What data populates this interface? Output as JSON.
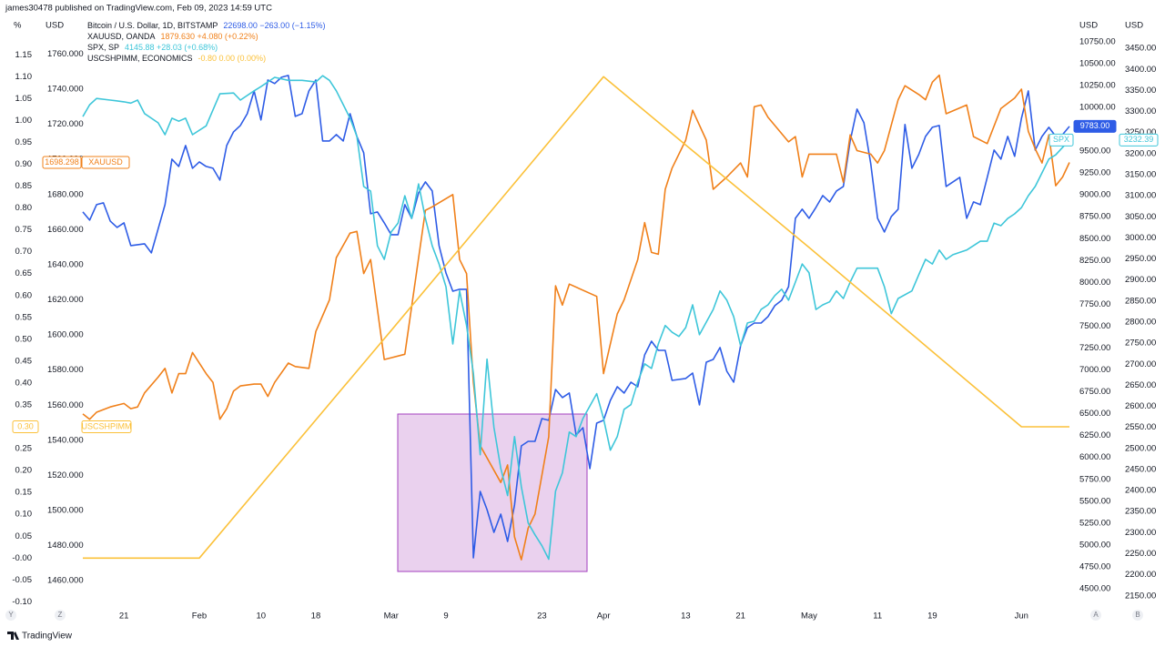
{
  "ui": {
    "header": "james30478 published on TradingView.com, Feb 09, 2023 14:59 UTC",
    "logo": "TradingView",
    "buttons": [
      "Y",
      "Z",
      "A",
      "B"
    ]
  },
  "chart_data": {
    "type": "line",
    "grid": false,
    "xlim": [
      14.6,
      159.4
    ],
    "xticks": [
      21,
      {
        "value": 32,
        "label": "Feb"
      },
      {
        "value": 41,
        "label": "10"
      },
      {
        "value": 49,
        "label": "18"
      },
      {
        "value": 60,
        "label": "Mar"
      },
      {
        "value": 68,
        "label": "9"
      },
      {
        "value": 82,
        "label": "23"
      },
      {
        "value": 91,
        "label": "Apr"
      },
      {
        "value": 103,
        "label": "13"
      },
      {
        "value": 111,
        "label": "21"
      },
      {
        "value": 121,
        "label": "May"
      },
      {
        "value": 131,
        "label": "11"
      },
      {
        "value": 139,
        "label": "19"
      },
      {
        "value": 152,
        "label": "Jun"
      }
    ],
    "y_label": "%",
    "ylim": [
      -0.12,
      1.24
    ],
    "yticks": [
      {
        "value": -0.1,
        "label": "-0.10"
      },
      -0.05,
      {
        "value": 0,
        "label": "-0.00"
      },
      0.05,
      {
        "value": 0.1,
        "label": "0.10"
      },
      0.15,
      {
        "value": 0.2,
        "label": "0.20"
      },
      0.25,
      {
        "value": 0.3,
        "label": "0.30"
      },
      0.35,
      {
        "value": 0.4,
        "label": "0.40"
      },
      0.45,
      {
        "value": 0.5,
        "label": "0.50"
      },
      0.55,
      {
        "value": 0.6,
        "label": "0.60"
      },
      0.65,
      {
        "value": 0.7,
        "label": "0.70"
      },
      0.75,
      {
        "value": 0.8,
        "label": "0.80"
      },
      0.85,
      {
        "value": 0.9,
        "label": "0.90"
      },
      0.95,
      {
        "value": 1,
        "label": "1.00"
      },
      1.05,
      {
        "value": 1.1,
        "label": "1.10"
      },
      1.15
    ],
    "y3_label": "USD",
    "y3lim": [
      1443,
      1782
    ],
    "y3ticks": [
      {
        "value": 1460,
        "label": "1460.000"
      },
      {
        "value": 1480,
        "label": "1480.000"
      },
      {
        "value": 1500,
        "label": "1500.000"
      },
      {
        "value": 1520,
        "label": "1520.000"
      },
      {
        "value": 1540,
        "label": "1540.000"
      },
      {
        "value": 1560,
        "label": "1560.000"
      },
      {
        "value": 1580,
        "label": "1580.000"
      },
      {
        "value": 1600,
        "label": "1600.000"
      },
      {
        "value": 1620,
        "label": "1620.000"
      },
      {
        "value": 1640,
        "label": "1640.000"
      },
      {
        "value": 1660,
        "label": "1660.000"
      },
      {
        "value": 1680,
        "label": "1680.000"
      },
      {
        "value": 1700,
        "label": "1700.000"
      },
      {
        "value": 1720,
        "label": "1720.000"
      },
      {
        "value": 1740,
        "label": "1740.000"
      },
      {
        "value": 1760,
        "label": "1760.000"
      }
    ],
    "y2_label": "USD",
    "y2lim": [
      4250,
      11050
    ],
    "y2ticks": [
      {
        "value": 4500,
        "label": "4500.00"
      },
      {
        "value": 4750,
        "label": "4750.00"
      },
      {
        "value": 5000,
        "label": "5000.00"
      },
      {
        "value": 5250,
        "label": "5250.00"
      },
      {
        "value": 5500,
        "label": "5500.00"
      },
      {
        "value": 5750,
        "label": "5750.00"
      },
      {
        "value": 6000,
        "label": "6000.00"
      },
      {
        "value": 6250,
        "label": "6250.00"
      },
      {
        "value": 6500,
        "label": "6500.00"
      },
      {
        "value": 6750,
        "label": "6750.00"
      },
      {
        "value": 7000,
        "label": "7000.00"
      },
      {
        "value": 7250,
        "label": "7250.00"
      },
      {
        "value": 7500,
        "label": "7500.00"
      },
      {
        "value": 7750,
        "label": "7750.00"
      },
      {
        "value": 8000,
        "label": "8000.00"
      },
      {
        "value": 8250,
        "label": "8250.00"
      },
      {
        "value": 8500,
        "label": "8500.00"
      },
      {
        "value": 8750,
        "label": "8750.00"
      },
      {
        "value": 9000,
        "label": "9000.00"
      },
      {
        "value": 9250,
        "label": "9250.00"
      },
      {
        "value": 9500,
        "label": "9500.00"
      },
      {
        "value": 9750,
        "label": "9750.00"
      },
      {
        "value": 10000,
        "label": "10000.00"
      },
      {
        "value": 10250,
        "label": "10250.00"
      },
      {
        "value": 10500,
        "label": "10500.00"
      },
      {
        "value": 10750,
        "label": "10750.00"
      }
    ],
    "y4_label": "USD",
    "y4lim": [
      2115,
      3528
    ],
    "y4ticks": [
      {
        "value": 2150,
        "label": "2150.00"
      },
      {
        "value": 2200,
        "label": "2200.00"
      },
      {
        "value": 2250,
        "label": "2250.00"
      },
      {
        "value": 2300,
        "label": "2300.00"
      },
      {
        "value": 2350,
        "label": "2350.00"
      },
      {
        "value": 2400,
        "label": "2400.00"
      },
      {
        "value": 2450,
        "label": "2450.00"
      },
      {
        "value": 2500,
        "label": "2500.00"
      },
      {
        "value": 2550,
        "label": "2550.00"
      },
      {
        "value": 2600,
        "label": "2600.00"
      },
      {
        "value": 2650,
        "label": "2650.00"
      },
      {
        "value": 2700,
        "label": "2700.00"
      },
      {
        "value": 2750,
        "label": "2750.00"
      },
      {
        "value": 2800,
        "label": "2800.00"
      },
      {
        "value": 2850,
        "label": "2850.00"
      },
      {
        "value": 2900,
        "label": "2900.00"
      },
      {
        "value": 2950,
        "label": "2950.00"
      },
      {
        "value": 3000,
        "label": "3000.00"
      },
      {
        "value": 3050,
        "label": "3050.00"
      },
      {
        "value": 3100,
        "label": "3100.00"
      },
      {
        "value": 3150,
        "label": "3150.00"
      },
      {
        "value": 3200,
        "label": "3200.00"
      },
      {
        "value": 3250,
        "label": "3250.00"
      },
      {
        "value": 3300,
        "label": "3300.00"
      },
      {
        "value": 3350,
        "label": "3350.00"
      },
      {
        "value": 3400,
        "label": "3400.00"
      },
      {
        "value": 3450,
        "label": "3450.00"
      }
    ],
    "series": [
      {
        "name": "Bitcoin / U.S. Dollar, 1D, BITSTAMP",
        "legend_values": "22698.00 −263.00 (−1.15%)",
        "color": "#2e5ce6",
        "axis": "y2",
        "tag_value": 9783,
        "tag_label": "9783.00",
        "x": [
          15,
          16,
          17,
          18,
          19,
          20,
          21,
          22,
          24,
          25,
          27,
          28,
          29,
          30,
          31,
          32,
          33,
          34,
          35,
          36,
          37,
          38,
          39,
          40,
          41,
          42,
          43,
          44,
          45,
          46,
          47,
          48,
          49,
          50,
          51,
          52,
          53,
          54,
          55,
          56,
          57,
          58,
          59,
          60,
          61,
          62,
          63,
          64,
          65,
          66,
          67,
          68,
          69,
          70,
          71,
          72,
          73,
          74,
          75,
          76,
          77,
          78,
          79,
          80,
          81,
          82,
          83,
          84,
          85,
          86,
          87,
          88,
          89,
          90,
          91,
          92,
          93,
          94,
          95,
          96,
          97,
          98,
          99,
          100,
          101,
          103,
          104,
          105,
          106,
          107,
          108,
          109,
          110,
          111,
          112,
          113,
          114,
          115,
          116,
          117,
          118,
          119,
          120,
          121,
          122,
          123,
          124,
          125,
          126,
          127,
          128,
          129,
          130,
          131,
          132,
          133,
          134,
          135,
          136,
          137,
          138,
          139,
          140,
          141,
          142,
          143,
          144,
          145,
          146,
          147,
          148,
          149,
          150,
          151,
          152,
          153,
          154,
          155,
          156,
          157,
          158,
          159
        ],
        "values": [
          8805,
          8712,
          8888,
          8909,
          8701,
          8628,
          8680,
          8420,
          8441,
          8337,
          8888,
          9408,
          9325,
          9564,
          9304,
          9377,
          9325,
          9304,
          9169,
          9564,
          9720,
          9793,
          9928,
          10188,
          9856,
          10313,
          10272,
          10344,
          10365,
          9897,
          9928,
          10188,
          10313,
          9616,
          9616,
          9689,
          9616,
          9928,
          9668,
          9481,
          8784,
          8805,
          8680,
          8545,
          8545,
          8888,
          8732,
          9024,
          9148,
          9044,
          8420,
          8108,
          7900,
          7921,
          7921,
          4853,
          5612,
          5404,
          5144,
          5352,
          5040,
          5456,
          6132,
          6184,
          6184,
          6444,
          6424,
          6777,
          6684,
          6736,
          6257,
          6340,
          5872,
          6392,
          6424,
          6652,
          6808,
          6736,
          6860,
          6808,
          7172,
          7328,
          7224,
          7224,
          6881,
          6902,
          6964,
          6600,
          7089,
          7120,
          7256,
          6985,
          6860,
          7276,
          7484,
          7536,
          7536,
          7609,
          7734,
          7796,
          7952,
          8732,
          8836,
          8732,
          8857,
          8992,
          8920,
          9044,
          9096,
          9616,
          9980,
          9824,
          9356,
          8732,
          8576,
          8753,
          8836,
          9804,
          9304,
          9460,
          9668,
          9772,
          9793,
          9096,
          9148,
          9200,
          8732,
          8920,
          8888,
          9200,
          9512,
          9408,
          9668,
          9440,
          9876,
          10188,
          9512,
          9668,
          9772,
          9668,
          9689,
          9783
        ]
      },
      {
        "name": "XAUUSD, OANDA",
        "legend_values": "1879.630 +4.080 (+0.22%)",
        "color": "#f0801a",
        "axis": "y3",
        "tag_value": 1698.298,
        "tag_name": "XAUUSD",
        "x": [
          15,
          16,
          17,
          19,
          21,
          22,
          23,
          24,
          26,
          27,
          28,
          29,
          30,
          31,
          33,
          34,
          35,
          36,
          37,
          38,
          40,
          41,
          42,
          43,
          45,
          46,
          48,
          49,
          51,
          52,
          54,
          55,
          56,
          57,
          59,
          62,
          65,
          66,
          69,
          70,
          71,
          72,
          73,
          76,
          77,
          78,
          79,
          80,
          81,
          83,
          84,
          85,
          86,
          90,
          91,
          93,
          94,
          96,
          97,
          98,
          99,
          100,
          101,
          103,
          104,
          106,
          107,
          109,
          111,
          112,
          113,
          114,
          115,
          118,
          119,
          120,
          121,
          125,
          126,
          127,
          128,
          130,
          131,
          132,
          134,
          135,
          137,
          138,
          139,
          140,
          141,
          144,
          145,
          147,
          149,
          151,
          152,
          153,
          154,
          155,
          156,
          157,
          158,
          159
        ],
        "values": [
          1555,
          1552,
          1556,
          1559,
          1561,
          1558,
          1559,
          1567,
          1576,
          1581,
          1567,
          1578,
          1578,
          1590,
          1578,
          1573,
          1552,
          1558,
          1568,
          1571,
          1572,
          1572,
          1565,
          1573,
          1584,
          1582,
          1581,
          1602,
          1620,
          1644,
          1658,
          1659,
          1635,
          1643,
          1586,
          1589,
          1671,
          1673,
          1680,
          1643,
          1635,
          1573,
          1537,
          1516,
          1526,
          1485,
          1472,
          1490,
          1498,
          1542,
          1628,
          1617,
          1629,
          1622,
          1578,
          1612,
          1620,
          1643,
          1664,
          1647,
          1646,
          1683,
          1695,
          1711,
          1728,
          1711,
          1683,
          1690,
          1698,
          1690,
          1730,
          1731,
          1724,
          1710,
          1713,
          1690,
          1703,
          1703,
          1687,
          1714,
          1705,
          1703,
          1698,
          1705,
          1734,
          1742,
          1737,
          1734,
          1744,
          1748,
          1726,
          1731,
          1713,
          1709,
          1729,
          1735,
          1740,
          1716,
          1706,
          1698,
          1714,
          1685,
          1690,
          1698.298
        ]
      },
      {
        "name": "SPX, SP",
        "legend_values": "4145.88 +28.03 (+0.68%)",
        "color": "#3ec6d9",
        "axis": "y4",
        "tag_value": 3232.39,
        "tag_name": "SPX",
        "x": [
          15,
          16,
          17,
          19,
          21,
          22,
          23,
          24,
          26,
          27,
          28,
          29,
          30,
          31,
          33,
          35,
          37,
          38,
          40,
          41,
          43,
          45,
          47,
          49,
          50,
          51,
          52,
          54,
          55,
          56,
          57,
          58,
          59,
          60,
          61,
          62,
          63,
          64,
          65,
          66,
          67,
          68,
          69,
          70,
          71,
          72,
          73,
          74,
          75,
          76,
          77,
          78,
          79,
          80,
          81,
          82,
          83,
          84,
          85,
          86,
          87,
          88,
          90,
          91,
          92,
          93,
          94,
          95,
          96,
          97,
          98,
          99,
          100,
          101,
          102,
          103,
          104,
          105,
          107,
          108,
          109,
          110,
          111,
          112,
          113,
          114,
          115,
          116,
          117,
          118,
          120,
          121,
          122,
          123,
          124,
          125,
          126,
          127,
          128,
          130,
          131,
          132,
          133,
          134,
          136,
          137,
          138,
          139,
          140,
          141,
          142,
          144,
          146,
          147,
          148,
          149,
          150,
          151,
          152,
          153,
          154,
          156,
          157,
          158,
          159
        ],
        "values": [
          3288,
          3316,
          3331,
          3327,
          3323,
          3320,
          3327,
          3295,
          3273,
          3245,
          3284,
          3277,
          3284,
          3245,
          3266,
          3342,
          3344,
          3327,
          3349,
          3359,
          3381,
          3374,
          3374,
          3370,
          3385,
          3374,
          3349,
          3284,
          3241,
          3122,
          3111,
          2981,
          2949,
          3014,
          3035,
          3100,
          3046,
          3128,
          3046,
          2981,
          2938,
          2884,
          2748,
          2874,
          2792,
          2679,
          2485,
          2712,
          2550,
          2453,
          2388,
          2528,
          2409,
          2323,
          2295,
          2269,
          2237,
          2399,
          2442,
          2539,
          2528,
          2571,
          2630,
          2571,
          2496,
          2528,
          2593,
          2604,
          2658,
          2701,
          2690,
          2748,
          2792,
          2776,
          2766,
          2787,
          2841,
          2770,
          2830,
          2874,
          2852,
          2813,
          2744,
          2798,
          2802,
          2830,
          2841,
          2863,
          2878,
          2852,
          2938,
          2917,
          2830,
          2841,
          2848,
          2874,
          2856,
          2895,
          2928,
          2928,
          2928,
          2884,
          2820,
          2856,
          2874,
          2912,
          2949,
          2938,
          2971,
          2949,
          2960,
          2971,
          2992,
          2992,
          3035,
          3029,
          3046,
          3057,
          3072,
          3100,
          3122,
          3187,
          3197,
          3215,
          3232.39
        ]
      },
      {
        "name": "USCSHPIMM, ECONOMICS",
        "legend_values": "-0.80 0.00 (0.00%)",
        "color": "#fbc13a",
        "axis": "y",
        "tag_value": 0.3,
        "tag_label": "0.30",
        "tag_name": "USCSHPIMM",
        "x": [
          15,
          32,
          60,
          91,
          121,
          152,
          159
        ],
        "values": [
          0,
          0,
          0.52,
          1.1,
          0.71,
          0.3,
          0.3
        ]
      }
    ]
  }
}
